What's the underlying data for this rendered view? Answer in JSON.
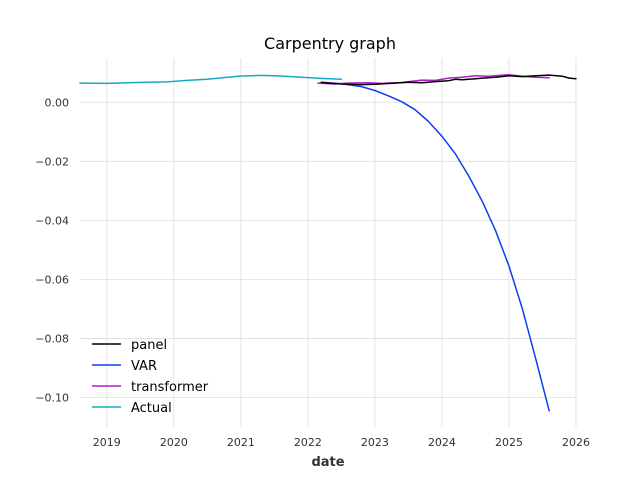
{
  "chart_data": {
    "type": "line",
    "title": "Carpentry graph",
    "xlabel": "date",
    "ylabel": "",
    "xlim": [
      2018.6,
      2026.0
    ],
    "ylim": [
      -0.11,
      0.015
    ],
    "grid": true,
    "legend_position": "lower-left",
    "x_ticks": [
      2019,
      2020,
      2021,
      2022,
      2023,
      2024,
      2025,
      2026
    ],
    "x_tick_labels": [
      "2019",
      "2020",
      "2021",
      "2022",
      "2023",
      "2024",
      "2025",
      "2026"
    ],
    "y_ticks": [
      0.0,
      -0.02,
      -0.04,
      -0.06,
      -0.08,
      -0.1
    ],
    "y_tick_labels": [
      "0.00",
      "−0.02",
      "−0.04",
      "−0.06",
      "−0.08",
      "−0.10"
    ],
    "series": [
      {
        "name": "panel",
        "color": "#000000",
        "x": [
          2022.2,
          2022.5,
          2022.8,
          2023.0,
          2023.3,
          2023.5,
          2023.7,
          2023.9,
          2024.1,
          2024.2,
          2024.3,
          2024.5,
          2024.6,
          2024.8,
          2025.0,
          2025.2,
          2025.4,
          2025.6,
          2025.8,
          2025.9,
          2026.0
        ],
        "y": [
          0.0067,
          0.0062,
          0.006,
          0.0061,
          0.0065,
          0.0068,
          0.0066,
          0.007,
          0.0073,
          0.0078,
          0.0076,
          0.008,
          0.0082,
          0.0085,
          0.009,
          0.0087,
          0.009,
          0.0092,
          0.0088,
          0.0082,
          0.008
        ]
      },
      {
        "name": "VAR",
        "color": "#0f3fe8",
        "x": [
          2022.2,
          2022.5,
          2022.8,
          2023.0,
          2023.2,
          2023.4,
          2023.6,
          2023.8,
          2024.0,
          2024.2,
          2024.4,
          2024.6,
          2024.8,
          2025.0,
          2025.2,
          2025.4,
          2025.6
        ],
        "y": [
          0.0068,
          0.0063,
          0.0053,
          0.004,
          0.0022,
          0.0002,
          -0.0025,
          -0.0065,
          -0.0115,
          -0.0175,
          -0.025,
          -0.0335,
          -0.0435,
          -0.0555,
          -0.07,
          -0.087,
          -0.1045
        ]
      },
      {
        "name": "transformer",
        "color": "#b01ec8",
        "x": [
          2022.15,
          2022.4,
          2022.6,
          2022.9,
          2023.1,
          2023.4,
          2023.7,
          2023.9,
          2024.1,
          2024.3,
          2024.5,
          2024.7,
          2024.9,
          2025.0,
          2025.2,
          2025.4,
          2025.6
        ],
        "y": [
          0.0065,
          0.0062,
          0.0065,
          0.0066,
          0.0064,
          0.0067,
          0.0075,
          0.0074,
          0.0082,
          0.0085,
          0.009,
          0.0088,
          0.0092,
          0.0093,
          0.0088,
          0.0085,
          0.0083
        ]
      },
      {
        "name": "Actual",
        "color": "#18a9c4",
        "x": [
          2018.6,
          2019.0,
          2019.3,
          2019.6,
          2019.9,
          2020.2,
          2020.5,
          2020.8,
          2021.0,
          2021.3,
          2021.6,
          2021.9,
          2022.2,
          2022.5
        ],
        "y": [
          0.0065,
          0.0064,
          0.0066,
          0.0068,
          0.0069,
          0.0074,
          0.0078,
          0.0085,
          0.0089,
          0.0091,
          0.0089,
          0.0085,
          0.0081,
          0.0078
        ]
      }
    ]
  }
}
